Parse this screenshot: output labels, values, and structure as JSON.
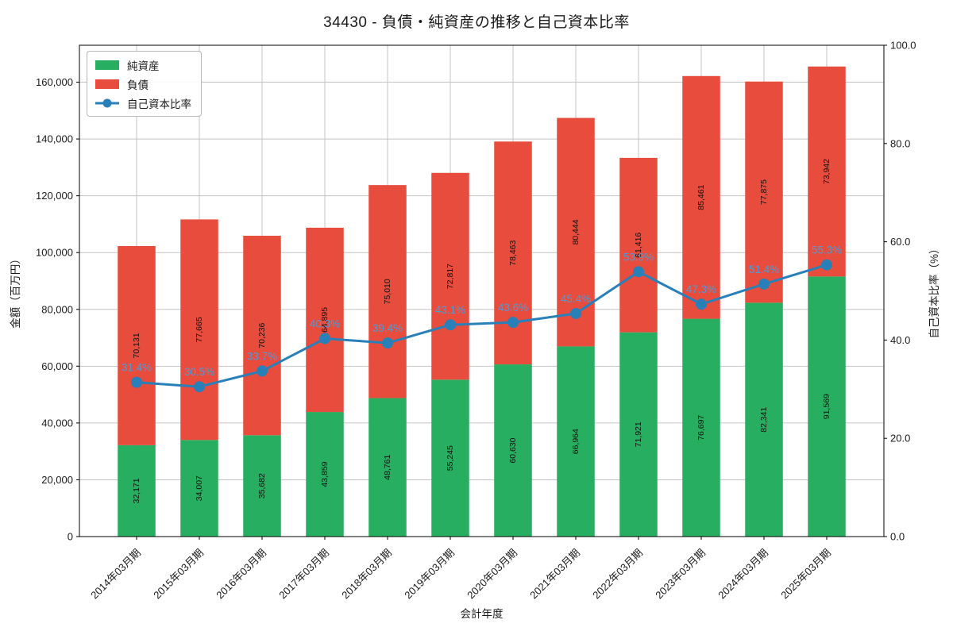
{
  "page": {
    "title": "34430 - 負債・純資産の推移と自己資本比率"
  },
  "chart_data": {
    "type": "bar",
    "subtype": "stacked-bars-with-ratio-line",
    "title": "34430 - 負債・純資産の推移と自己資本比率",
    "xlabel": "会計年度",
    "ylabel_left": "金額（百万円）",
    "ylabel_right": "自己資本比率（%）",
    "categories": [
      "2014年03月期",
      "2015年03月期",
      "2016年03月期",
      "2017年03月期",
      "2018年03月期",
      "2019年03月期",
      "2020年03月期",
      "2021年03月期",
      "2022年03月期",
      "2023年03月期",
      "2024年03月期",
      "2025年03月期"
    ],
    "series": [
      {
        "name": "純資産",
        "type": "bar",
        "stack_order": 0,
        "color": "#27ae60",
        "values": [
          32171,
          34007,
          35682,
          43859,
          48761,
          55245,
          60630,
          66964,
          71921,
          76697,
          82341,
          91569
        ]
      },
      {
        "name": "負債",
        "type": "bar",
        "stack_order": 1,
        "color": "#e74c3c",
        "values": [
          70131,
          77665,
          70236,
          64895,
          75010,
          72817,
          78463,
          80444,
          61416,
          85461,
          77875,
          73942
        ]
      },
      {
        "name": "自己資本比率",
        "type": "line",
        "axis": "right",
        "color": "#2980b9",
        "label_color": "#5499d3",
        "values": [
          31.4,
          30.5,
          33.7,
          40.3,
          39.4,
          43.1,
          43.6,
          45.4,
          53.9,
          47.3,
          51.4,
          55.3
        ]
      }
    ],
    "yticks_left": [
      "0",
      "20,000",
      "40,000",
      "60,000",
      "80,000",
      "100,000",
      "120,000",
      "140,000",
      "160,000"
    ],
    "yticks_right": [
      "0.0",
      "20.0",
      "40.0",
      "60.0",
      "80.0",
      "100.0"
    ],
    "ylim_left": [
      0,
      173000
    ],
    "ylim_right": [
      0,
      100
    ],
    "grid": true,
    "grid_color": "#c3c3c3",
    "spine_color": "#000000",
    "text_color": "#1a1a1a",
    "legend_position": "upper-left"
  }
}
